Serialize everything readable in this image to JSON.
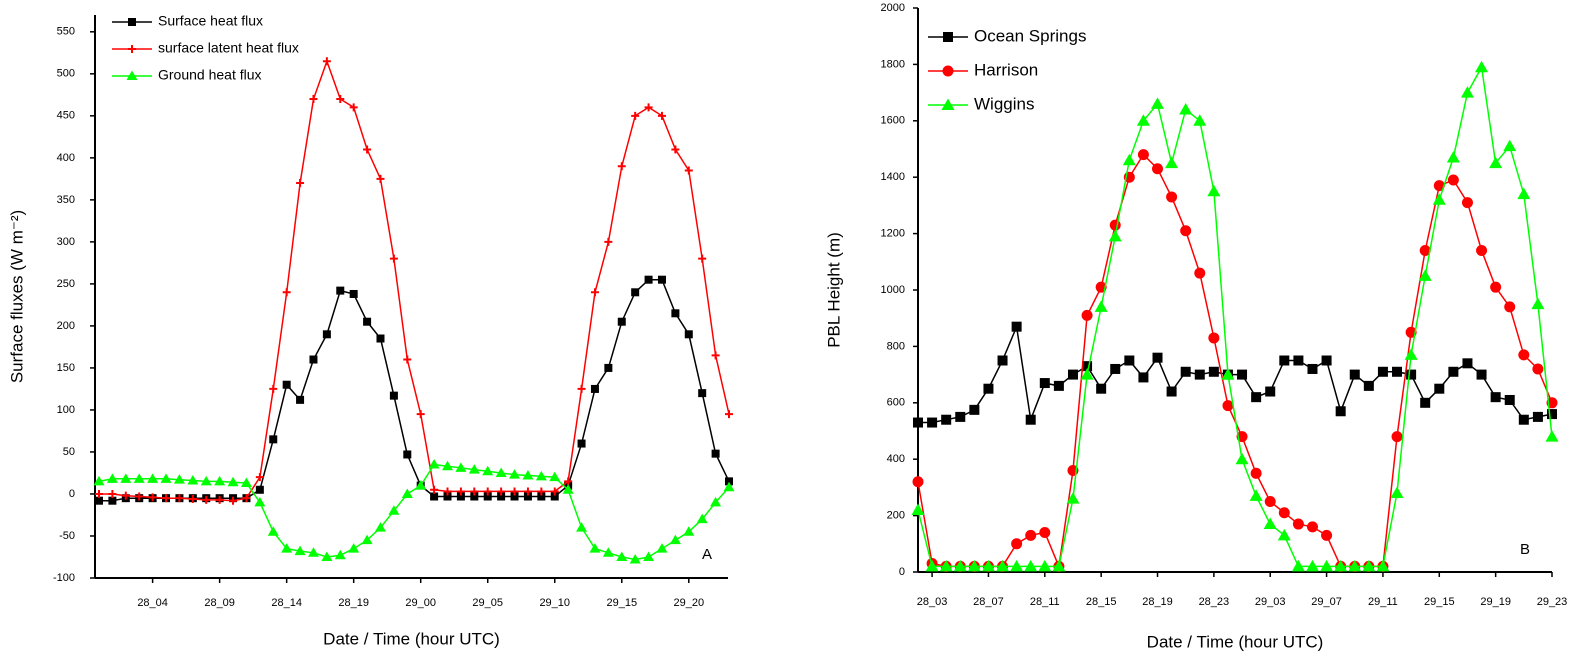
{
  "chart_data": [
    {
      "type": "line",
      "y_label": "Surface fluxes (W m⁻²)",
      "x_label": "Date / Time (hour UTC)",
      "annotation": "A",
      "legend": "upper left",
      "categories": [
        null,
        null,
        null,
        null,
        "28_04",
        null,
        null,
        null,
        null,
        "28_09",
        null,
        null,
        null,
        null,
        "28_14",
        null,
        null,
        null,
        null,
        "28_19",
        null,
        null,
        null,
        null,
        "29_00",
        null,
        null,
        null,
        null,
        "29_05",
        null,
        null,
        null,
        null,
        "29_10",
        null,
        null,
        null,
        null,
        "29_15",
        null,
        null,
        null,
        null,
        "29_20",
        null,
        null,
        null
      ],
      "ylim": [
        -100,
        570
      ],
      "yticks": [
        -100,
        -50,
        0,
        50,
        100,
        150,
        200,
        250,
        300,
        350,
        400,
        450,
        500,
        550
      ],
      "series": [
        {
          "name": "Surface heat flux",
          "color": "#000000",
          "marker": "square",
          "values": [
            -8,
            -8,
            -5,
            -5,
            -5,
            -5,
            -5,
            -5,
            -5,
            -5,
            -5,
            -5,
            5,
            65,
            130,
            112,
            160,
            190,
            242,
            238,
            205,
            185,
            117,
            47,
            10,
            -3,
            -3,
            -3,
            -3,
            -3,
            -3,
            -3,
            -3,
            -3,
            -3,
            10,
            60,
            125,
            150,
            205,
            240,
            255,
            255,
            215,
            190,
            120,
            48,
            15
          ]
        },
        {
          "name": "surface latent heat flux",
          "color": "#ff0000",
          "marker": "plus",
          "values": [
            0,
            0,
            -2,
            -3,
            -4,
            -5,
            -5,
            -6,
            -7,
            -7,
            -8,
            -5,
            20,
            125,
            240,
            370,
            470,
            515,
            470,
            460,
            410,
            375,
            280,
            160,
            95,
            5,
            3,
            3,
            3,
            3,
            3,
            3,
            3,
            3,
            3,
            15,
            125,
            240,
            300,
            390,
            450,
            460,
            450,
            410,
            385,
            280,
            165,
            95
          ]
        },
        {
          "name": "Ground heat flux",
          "color": "#00ff00",
          "marker": "triangle",
          "values": [
            15,
            18,
            18,
            18,
            18,
            18,
            17,
            16,
            15,
            15,
            14,
            13,
            -10,
            -45,
            -65,
            -68,
            -70,
            -75,
            -73,
            -65,
            -55,
            -40,
            -20,
            0,
            10,
            35,
            33,
            31,
            29,
            27,
            25,
            23,
            22,
            21,
            20,
            5,
            -40,
            -65,
            -70,
            -75,
            -78,
            -75,
            -65,
            -55,
            -45,
            -30,
            -10,
            8
          ]
        }
      ]
    },
    {
      "type": "line",
      "y_label": "PBL Height (m)",
      "x_label": "Date / Time (hour UTC)",
      "annotation": "B",
      "legend": "upper left",
      "categories": [
        null,
        "28_03",
        null,
        null,
        null,
        "28_07",
        null,
        null,
        null,
        "28_11",
        null,
        null,
        null,
        "28_15",
        null,
        null,
        null,
        "28_19",
        null,
        null,
        null,
        "28_23",
        null,
        null,
        null,
        "29_03",
        null,
        null,
        null,
        "29_07",
        null,
        null,
        null,
        "29_11",
        null,
        null,
        null,
        "29_15",
        null,
        null,
        null,
        "29_19",
        null,
        null,
        null,
        "29_23"
      ],
      "ylim": [
        0,
        2000
      ],
      "yticks": [
        0,
        200,
        400,
        600,
        800,
        1000,
        1200,
        1400,
        1600,
        1800,
        2000
      ],
      "series": [
        {
          "name": "Ocean Springs",
          "color": "#000000",
          "marker": "square",
          "values": [
            530,
            530,
            540,
            550,
            575,
            650,
            750,
            870,
            540,
            670,
            660,
            700,
            730,
            650,
            720,
            750,
            690,
            760,
            640,
            710,
            700,
            710,
            700,
            700,
            620,
            640,
            750,
            750,
            720,
            750,
            570,
            700,
            660,
            710,
            710,
            700,
            600,
            650,
            710,
            740,
            700,
            620,
            610,
            540,
            550,
            560
          ]
        },
        {
          "name": "Harrison",
          "color": "#ff0000",
          "marker": "circle",
          "values": [
            320,
            30,
            20,
            20,
            20,
            20,
            20,
            100,
            130,
            140,
            20,
            360,
            910,
            1010,
            1230,
            1400,
            1480,
            1430,
            1330,
            1210,
            1060,
            830,
            590,
            480,
            350,
            250,
            210,
            170,
            160,
            130,
            20,
            20,
            20,
            20,
            480,
            850,
            1140,
            1370,
            1390,
            1310,
            1140,
            1010,
            940,
            770,
            720,
            600
          ]
        },
        {
          "name": "Wiggins",
          "color": "#00ff00",
          "marker": "triangle",
          "values": [
            220,
            20,
            20,
            20,
            20,
            20,
            20,
            20,
            20,
            20,
            20,
            260,
            700,
            940,
            1190,
            1460,
            1600,
            1660,
            1450,
            1640,
            1600,
            1350,
            700,
            400,
            270,
            170,
            130,
            20,
            20,
            20,
            20,
            20,
            20,
            20,
            280,
            770,
            1050,
            1320,
            1470,
            1700,
            1790,
            1450,
            1510,
            1340,
            950,
            480
          ]
        }
      ]
    }
  ]
}
